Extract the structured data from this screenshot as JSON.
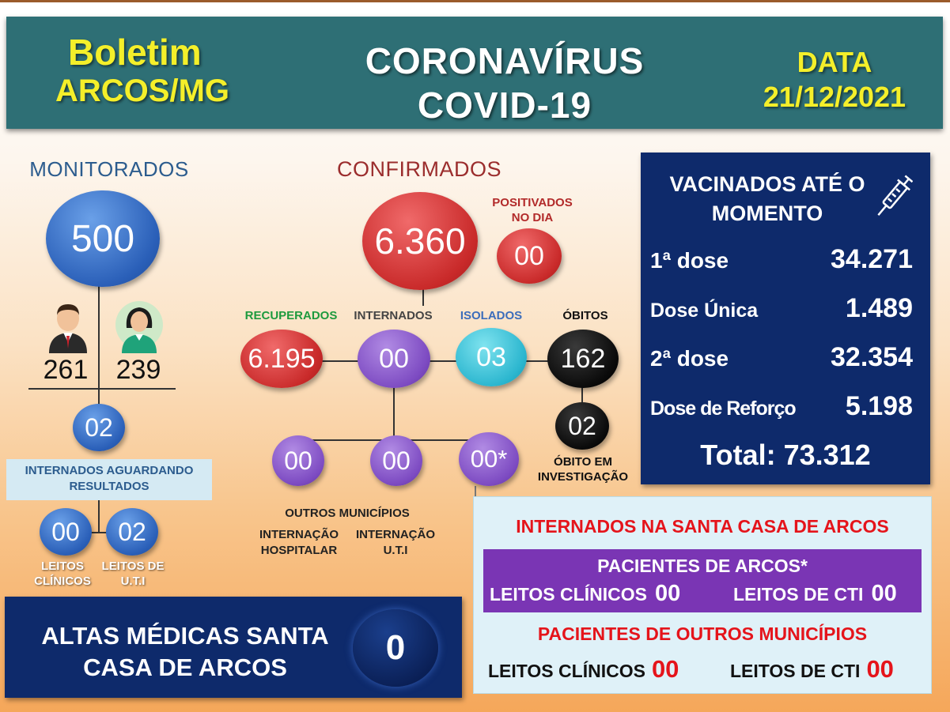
{
  "header": {
    "title_line1": "Boletim",
    "title_line2": "ARCOS/MG",
    "center_line1": "CORONAVÍRUS",
    "center_line2": "COVID-19",
    "date_label": "DATA",
    "date_value": "21/12/2021"
  },
  "monitorados": {
    "label": "MONITORADOS",
    "total": "500",
    "male": "261",
    "female": "239",
    "internados": "02",
    "internados_label": "INTERNADOS AGUARDANDO RESULTADOS",
    "leitos_clinicos": "00",
    "leitos_clinicos_label": "LEITOS CLÍNICOS",
    "leitos_uti": "02",
    "leitos_uti_label": "LEITOS DE U.T.I"
  },
  "confirmados": {
    "label": "CONFIRMADOS",
    "total": "6.360",
    "positivados_label": "POSITIVADOS NO DIA",
    "positivados": "00",
    "recuperados_label": "RECUPERADOS",
    "recuperados": "6.195",
    "internados_label": "INTERNADOS",
    "internados": "00",
    "isolados_label": "ISOLADOS",
    "isolados": "03",
    "obitos_label": "ÓBITOS",
    "obitos": "162",
    "obito_investigacao": "02",
    "obito_investigacao_label": "ÓBITO EM INVESTIGAÇÃO",
    "outros_municipios": "00",
    "internacao_hospitalar": "00",
    "internacao_uti": "00*",
    "outros_municipios_label": "OUTROS MUNICÍPIOS",
    "internacao_hospitalar_label": "INTERNAÇÃO HOSPITALAR",
    "internacao_uti_label": "INTERNAÇÃO U.T.I"
  },
  "vacinados": {
    "title": "VACINADOS ATÉ O MOMENTO",
    "rows": [
      {
        "label": "1ª dose",
        "value": "34.271"
      },
      {
        "label": "Dose Única",
        "value": "1.489"
      },
      {
        "label": "2ª dose",
        "value": "32.354"
      },
      {
        "label": "Dose de Reforço",
        "value": "5.198"
      }
    ],
    "total": "Total: 73.312"
  },
  "altas": {
    "text": "ALTAS MÉDICAS SANTA CASA DE ARCOS",
    "value": "0"
  },
  "santa_casa": {
    "title": "INTERNADOS NA SANTA CASA DE ARCOS",
    "pacientes_arcos": "PACIENTES DE ARCOS*",
    "arcos_clinicos_label": "LEITOS CLÍNICOS",
    "arcos_clinicos": "00",
    "arcos_cti_label": "LEITOS DE CTI",
    "arcos_cti": "00",
    "outros_title": "PACIENTES DE OUTROS MUNICÍPIOS",
    "outros_clinicos_label": "LEITOS CLÍNICOS",
    "outros_clinicos": "00",
    "outros_cti_label": "LEITOS DE CTI",
    "outros_cti": "00"
  },
  "icons": [
    "male-person-icon",
    "female-person-icon",
    "syringe-icon"
  ]
}
